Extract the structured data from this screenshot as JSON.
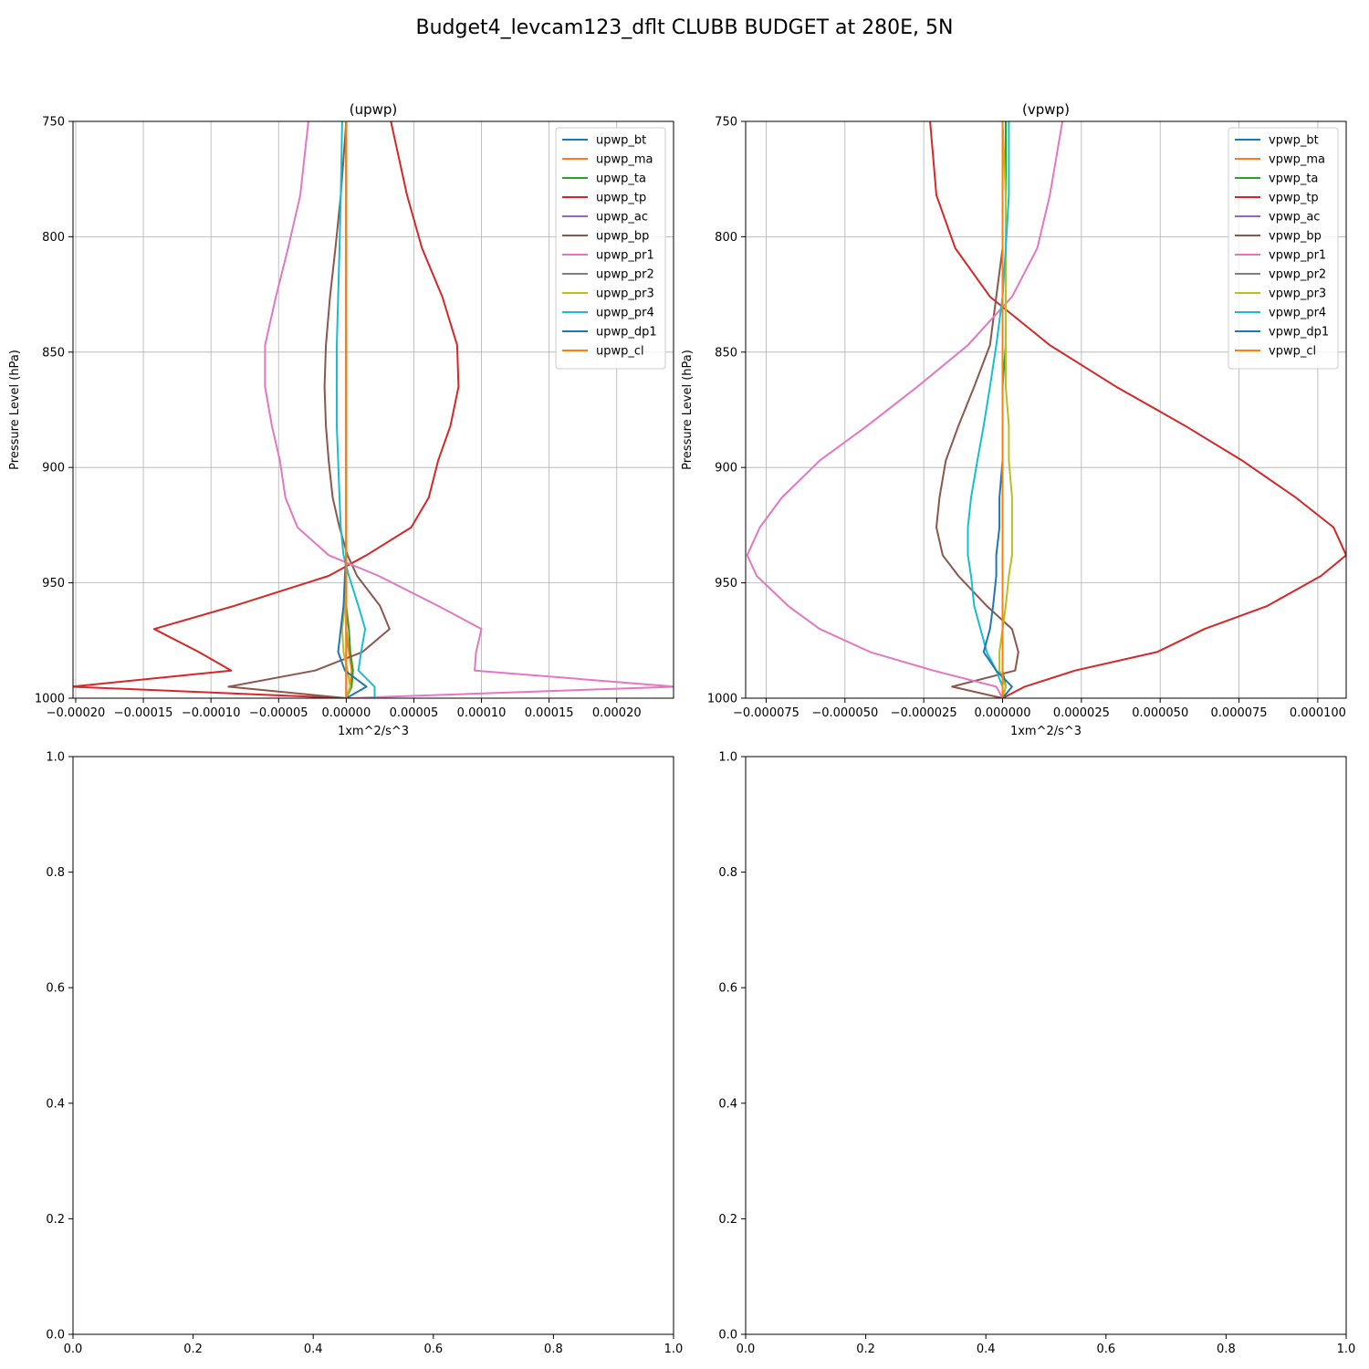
{
  "figure": {
    "suptitle": "Budget4_levcam123_dflt CLUBB BUDGET at 280E, 5N"
  },
  "chart_data": [
    {
      "type": "line",
      "title": "(upwp)",
      "xlabel": "1xm^2/s^3",
      "ylabel": "Pressure Level (hPa)",
      "xlim": [
        -0.000202,
        0.000242
      ],
      "ylim": [
        1000,
        750
      ],
      "y_inverted": true,
      "grid": true,
      "legend_position": "upper right",
      "x_ticks": [
        -0.0002,
        -0.00015,
        -0.0001,
        -5e-05,
        0.0,
        5e-05,
        0.0001,
        0.00015,
        0.0002
      ],
      "x_tick_labels": [
        "−0.00020",
        "−0.00015",
        "−0.00010",
        "−0.00005",
        "0.00000",
        "0.00005",
        "0.00010",
        "0.00015",
        "0.00020"
      ],
      "y_ticks": [
        750,
        800,
        850,
        900,
        950,
        1000
      ],
      "y_tick_labels": [
        "750",
        "800",
        "850",
        "900",
        "950",
        "1000"
      ],
      "levels": [
        750,
        782,
        805,
        826,
        847,
        865,
        882,
        897,
        913,
        926,
        938,
        947,
        960,
        970,
        980,
        988,
        995,
        1000
      ],
      "series": [
        {
          "name": "upwp_bt",
          "color": "#1f77b4",
          "values": [
            0,
            0,
            0,
            0,
            0,
            0,
            0,
            0,
            0,
            0,
            0,
            0,
            0,
            0,
            0,
            0,
            0,
            0
          ]
        },
        {
          "name": "upwp_ma",
          "color": "#ff7f0e",
          "values": [
            0,
            0,
            0,
            0,
            0,
            0,
            0,
            0,
            0,
            0,
            0,
            0,
            0,
            0,
            2e-06,
            4e-06,
            3e-06,
            0
          ]
        },
        {
          "name": "upwp_ta",
          "color": "#2ca02c",
          "values": [
            0,
            0,
            0,
            0,
            0,
            0,
            0,
            0,
            0,
            0,
            0,
            0,
            0,
            2e-06,
            3e-06,
            5e-06,
            4e-06,
            0
          ]
        },
        {
          "name": "upwp_tp",
          "color": "#d62728",
          "values": [
            3.3e-05,
            4.5e-05,
            5.6e-05,
            7.1e-05,
            8.2e-05,
            8.3e-05,
            7.7e-05,
            6.8e-05,
            6.1e-05,
            4.8e-05,
            1.5e-05,
            -1.3e-05,
            -8.3e-05,
            -0.000142,
            -0.000109,
            -8.5e-05,
            -0.000203,
            0
          ]
        },
        {
          "name": "upwp_ac",
          "color": "#9467bd",
          "values": [
            0,
            0,
            0,
            0,
            0,
            0,
            0,
            0,
            0,
            0,
            0,
            0,
            0,
            0,
            0,
            0,
            0,
            0
          ]
        },
        {
          "name": "upwp_bp",
          "color": "#8c564b",
          "values": [
            0,
            -4e-06,
            -8e-06,
            -1.2e-05,
            -1.5e-05,
            -1.6e-05,
            -1.5e-05,
            -1.3e-05,
            -1e-05,
            -5e-06,
            1e-06,
            8e-06,
            2.5e-05,
            3.2e-05,
            1.2e-05,
            -2.3e-05,
            -8.7e-05,
            0
          ]
        },
        {
          "name": "upwp_pr1",
          "color": "#e377c2",
          "values": [
            -2.8e-05,
            -3.4e-05,
            -4.3e-05,
            -5.2e-05,
            -6e-05,
            -6e-05,
            -5.5e-05,
            -4.9e-05,
            -4.5e-05,
            -3.6e-05,
            -1.3e-05,
            2.4e-05,
            6.8e-05,
            0.0001,
            9.6e-05,
            9.5e-05,
            0.000243,
            0
          ]
        },
        {
          "name": "upwp_pr2",
          "color": "#7f7f7f",
          "values": [
            0,
            0,
            0,
            0,
            0,
            0,
            0,
            0,
            0,
            0,
            0,
            0,
            0,
            0,
            0,
            0,
            0,
            0
          ]
        },
        {
          "name": "upwp_pr3",
          "color": "#bcbd22",
          "values": [
            0,
            0,
            0,
            0,
            0,
            0,
            0,
            0,
            0,
            0,
            0,
            0,
            -1e-06,
            -3e-06,
            -2e-06,
            1e-06,
            3e-06,
            0
          ]
        },
        {
          "name": "upwp_pr4",
          "color": "#17becf",
          "values": [
            -3e-06,
            -4e-06,
            -5e-06,
            -6e-06,
            -7e-06,
            -7e-06,
            -7e-06,
            -6e-06,
            -5e-06,
            -4e-06,
            -2e-06,
            2e-06,
            9e-06,
            1.4e-05,
            1.1e-05,
            9e-06,
            2.1e-05,
            2.1e-05
          ]
        },
        {
          "name": "upwp_dp1",
          "color": "#1f77b4",
          "values": [
            0,
            0,
            0,
            0,
            0,
            0,
            0,
            0,
            0,
            0,
            0,
            -1e-06,
            -2e-06,
            -4e-06,
            -6e-06,
            -1e-06,
            1.5e-05,
            0
          ]
        },
        {
          "name": "upwp_cl",
          "color": "#ff7f0e",
          "values": [
            0,
            0,
            0,
            0,
            0,
            0,
            0,
            0,
            0,
            0,
            0,
            0,
            0,
            0,
            0,
            0,
            0,
            0
          ]
        }
      ]
    },
    {
      "type": "line",
      "title": "(vpwp)",
      "xlabel": "1xm^2/s^3",
      "ylabel": "Pressure Level (hPa)",
      "xlim": [
        -8.15e-05,
        0.000109
      ],
      "ylim": [
        1000,
        750
      ],
      "y_inverted": true,
      "grid": true,
      "legend_position": "upper right",
      "x_ticks": [
        -7.5e-05,
        -5e-05,
        -2.5e-05,
        0.0,
        2.5e-05,
        5e-05,
        7.5e-05,
        0.0001
      ],
      "x_tick_labels": [
        "−0.000075",
        "−0.000050",
        "−0.000025",
        "0.000000",
        "0.000025",
        "0.000050",
        "0.000075",
        "0.000100"
      ],
      "y_ticks": [
        750,
        800,
        850,
        900,
        950,
        1000
      ],
      "y_tick_labels": [
        "750",
        "800",
        "850",
        "900",
        "950",
        "1000"
      ],
      "levels": [
        750,
        782,
        805,
        826,
        847,
        865,
        882,
        897,
        913,
        926,
        938,
        947,
        960,
        970,
        980,
        988,
        995,
        1000
      ],
      "series": [
        {
          "name": "vpwp_bt",
          "color": "#1f77b4",
          "values": [
            0,
            0,
            0,
            0,
            0,
            0,
            0,
            0,
            0,
            0,
            0,
            0,
            0,
            0,
            0,
            0,
            0,
            0
          ]
        },
        {
          "name": "vpwp_ma",
          "color": "#ff7f0e",
          "values": [
            0,
            0,
            0,
            0,
            0,
            0,
            0,
            0,
            0,
            0,
            0,
            0,
            0,
            0,
            0,
            0,
            0,
            0
          ]
        },
        {
          "name": "vpwp_ta",
          "color": "#2ca02c",
          "values": [
            1e-06,
            1e-06,
            1e-06,
            1e-06,
            1e-06,
            0,
            0,
            0,
            0,
            0,
            0,
            0,
            0,
            0,
            0,
            0,
            1e-06,
            0
          ]
        },
        {
          "name": "vpwp_tp",
          "color": "#d62728",
          "values": [
            -2.3e-05,
            -2.1e-05,
            -1.5e-05,
            -4e-06,
            1.5e-05,
            3.6e-05,
            5.8e-05,
            7.6e-05,
            9.3e-05,
            0.000105,
            0.000109,
            0.000101,
            8.4e-05,
            6.4e-05,
            4.9e-05,
            2.3e-05,
            7e-06,
            0
          ]
        },
        {
          "name": "vpwp_ac",
          "color": "#9467bd",
          "values": [
            0,
            0,
            0,
            0,
            0,
            0,
            0,
            0,
            0,
            0,
            0,
            0,
            0,
            0,
            0,
            0,
            0,
            0
          ]
        },
        {
          "name": "vpwp_bp",
          "color": "#8c564b",
          "values": [
            0,
            0,
            0,
            -2e-06,
            -4e-06,
            -9e-06,
            -1.4e-05,
            -1.8e-05,
            -2e-05,
            -2.1e-05,
            -1.9e-05,
            -1.4e-05,
            -5e-06,
            3e-06,
            5e-06,
            4e-06,
            -1.6e-05,
            0
          ]
        },
        {
          "name": "vpwp_pr1",
          "color": "#e377c2",
          "values": [
            1.9e-05,
            1.5e-05,
            1.1e-05,
            3e-06,
            -1.1e-05,
            -2.7e-05,
            -4.3e-05,
            -5.8e-05,
            -7e-05,
            -7.7e-05,
            -8.1e-05,
            -7.8e-05,
            -6.8e-05,
            -5.8e-05,
            -4.2e-05,
            -2.2e-05,
            -2e-06,
            0
          ]
        },
        {
          "name": "vpwp_pr2",
          "color": "#7f7f7f",
          "values": [
            0,
            0,
            0,
            0,
            0,
            0,
            0,
            0,
            0,
            0,
            0,
            0,
            0,
            0,
            0,
            0,
            0,
            0
          ]
        },
        {
          "name": "vpwp_pr3",
          "color": "#bcbd22",
          "values": [
            0,
            1e-06,
            1e-06,
            1e-06,
            1e-06,
            1e-06,
            2e-06,
            2e-06,
            3e-06,
            3e-06,
            3e-06,
            2e-06,
            1e-06,
            0,
            -1e-06,
            -1e-06,
            1e-06,
            0
          ]
        },
        {
          "name": "vpwp_pr4",
          "color": "#17becf",
          "values": [
            2e-06,
            2e-06,
            1e-06,
            0,
            -2e-06,
            -4e-06,
            -6e-06,
            -8e-06,
            -1e-05,
            -1.1e-05,
            -1.1e-05,
            -1e-05,
            -9e-06,
            -7e-06,
            -5e-06,
            -2e-06,
            0,
            0
          ]
        },
        {
          "name": "vpwp_dp1",
          "color": "#1f77b4",
          "values": [
            0,
            0,
            0,
            0,
            0,
            0,
            0,
            0,
            -1e-06,
            -1e-06,
            -2e-06,
            -2e-06,
            -3e-06,
            -4e-06,
            -6e-06,
            -2e-06,
            3e-06,
            0
          ]
        },
        {
          "name": "vpwp_cl",
          "color": "#ff7f0e",
          "values": [
            0,
            0,
            0,
            0,
            0,
            0,
            0,
            0,
            0,
            0,
            0,
            0,
            0,
            0,
            0,
            0,
            0,
            0
          ]
        }
      ]
    },
    {
      "type": "line",
      "title": "",
      "xlim": [
        0,
        1
      ],
      "ylim": [
        0,
        1
      ],
      "grid": false,
      "x_ticks": [
        0,
        0.2,
        0.4,
        0.6,
        0.8,
        1
      ],
      "x_tick_labels": [
        "0.0",
        "0.2",
        "0.4",
        "0.6",
        "0.8",
        "1.0"
      ],
      "y_ticks": [
        0,
        0.2,
        0.4,
        0.6,
        0.8,
        1
      ],
      "y_tick_labels": [
        "0.0",
        "0.2",
        "0.4",
        "0.6",
        "0.8",
        "1.0"
      ],
      "series": []
    },
    {
      "type": "line",
      "title": "",
      "xlim": [
        0,
        1
      ],
      "ylim": [
        0,
        1
      ],
      "grid": false,
      "x_ticks": [
        0,
        0.2,
        0.4,
        0.6,
        0.8,
        1
      ],
      "x_tick_labels": [
        "0.0",
        "0.2",
        "0.4",
        "0.6",
        "0.8",
        "1.0"
      ],
      "y_ticks": [
        0,
        0.2,
        0.4,
        0.6,
        0.8,
        1
      ],
      "y_tick_labels": [
        "0.0",
        "0.2",
        "0.4",
        "0.6",
        "0.8",
        "1.0"
      ],
      "series": []
    }
  ]
}
